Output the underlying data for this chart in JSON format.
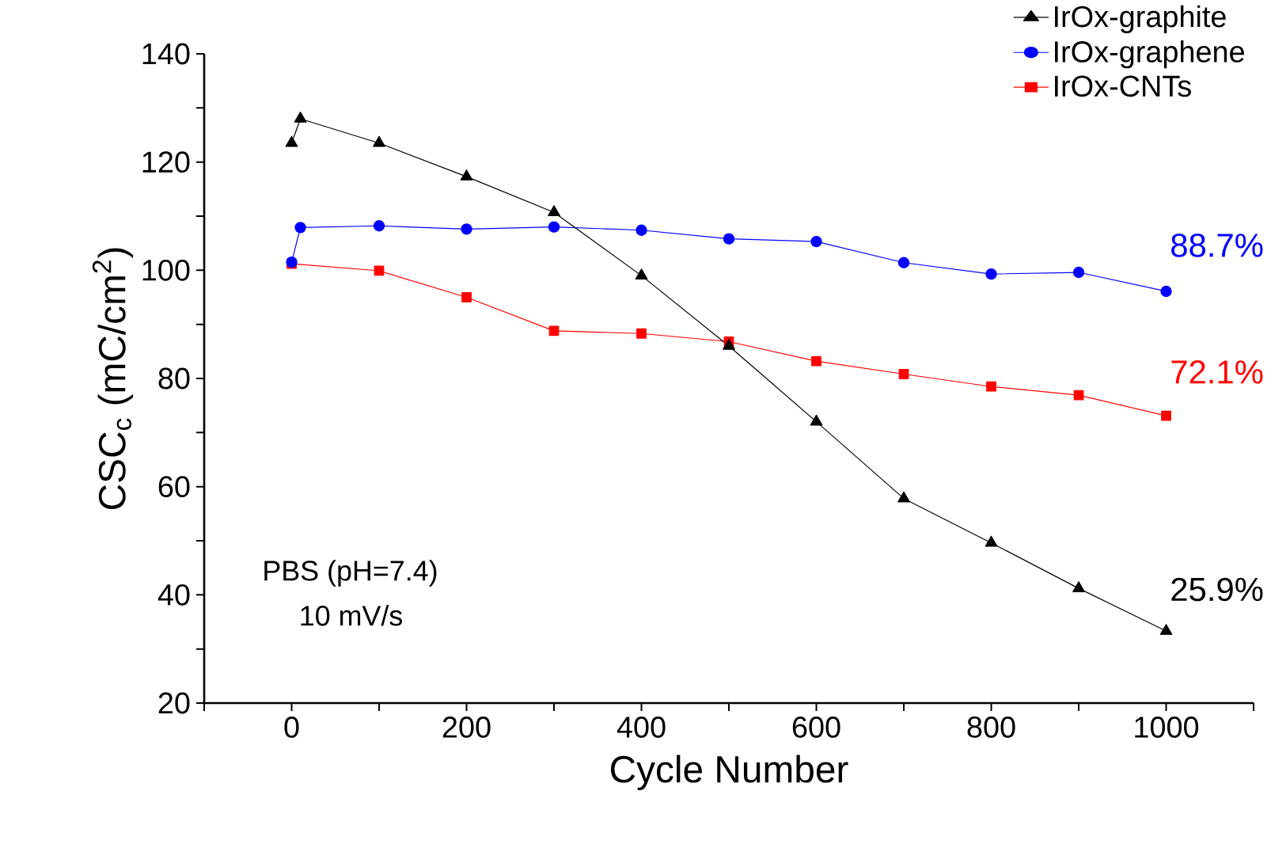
{
  "chart_data": {
    "type": "line",
    "xlabel": "Cycle Number",
    "ylabel": "CSC$_{c}$ (mC/cm$^{2}$)",
    "xlim": [
      -100,
      1100
    ],
    "xticks": [
      {
        "value": -100,
        "label": null
      },
      0,
      {
        "value": 100,
        "label": null
      },
      200,
      {
        "value": 300,
        "label": null
      },
      400,
      {
        "value": 500,
        "label": null
      },
      600,
      {
        "value": 700,
        "label": null
      },
      800,
      {
        "value": 900,
        "label": null
      },
      1000,
      {
        "value": 1100,
        "label": null
      }
    ],
    "ylim": [
      20,
      140
    ],
    "yticks": [
      20,
      {
        "value": 30,
        "label": null
      },
      40,
      {
        "value": 50,
        "label": null
      },
      60,
      {
        "value": 70,
        "label": null
      },
      80,
      {
        "value": 90,
        "label": null
      },
      100,
      {
        "value": 110,
        "label": null
      },
      120,
      {
        "value": 130,
        "label": null
      },
      140
    ],
    "grid": false,
    "legend": "top right",
    "line_style": "solid",
    "series": [
      {
        "name": "IrOx-graphite",
        "color": "#000000",
        "marker": "triangle",
        "x": [
          0,
          10,
          100,
          200,
          300,
          400,
          500,
          600,
          700,
          800,
          900,
          1000
        ],
        "values": [
          123.5,
          128,
          123.5,
          117.3,
          110.7,
          99,
          86,
          72,
          57.8,
          49.6,
          41.2,
          33.3
        ]
      },
      {
        "name": "IrOx-graphene",
        "color": "#0000ff",
        "marker": "circle",
        "x": [
          0,
          10,
          100,
          200,
          300,
          400,
          500,
          600,
          700,
          800,
          900,
          1000
        ],
        "values": [
          101.5,
          107.9,
          108.2,
          107.6,
          108,
          107.4,
          105.8,
          105.3,
          101.4,
          99.3,
          99.6,
          96.1
        ]
      },
      {
        "name": "IrOx-CNTs",
        "color": "#ff0000",
        "marker": "square",
        "x": [
          0,
          100,
          200,
          300,
          400,
          500,
          600,
          700,
          800,
          900,
          1000
        ],
        "values": [
          101.2,
          99.9,
          95,
          88.8,
          88.3,
          86.8,
          83.2,
          80.8,
          78.5,
          76.9,
          73.1
        ]
      }
    ],
    "annotations": [
      "88.7%",
      "72.1%",
      "25.9%",
      "PBS (pH=7.4)",
      "10 mV/s"
    ]
  }
}
